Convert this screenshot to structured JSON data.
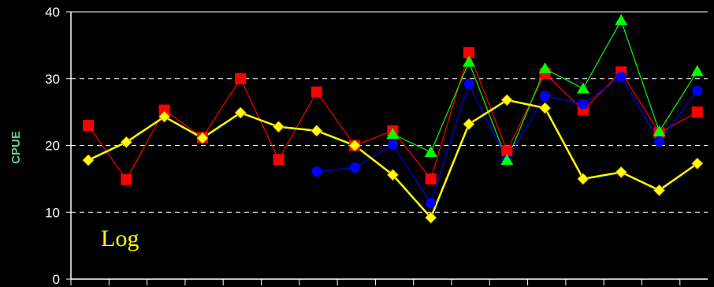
{
  "chart_data": {
    "type": "line",
    "title": "",
    "xlabel": "",
    "ylabel": "CPUE",
    "ylim": [
      0,
      40
    ],
    "yticks": [
      0,
      10,
      20,
      30,
      40
    ],
    "grid": "horizontal dashed",
    "x": [
      1,
      2,
      3,
      4,
      5,
      6,
      7,
      8,
      9,
      10,
      11,
      12,
      13,
      14,
      15,
      16,
      17,
      18
    ],
    "annotation": "Log",
    "series": [
      {
        "color": "#ff0000",
        "marker": "square",
        "values": [
          23.0,
          14.9,
          25.3,
          21.2,
          30.0,
          17.9,
          28.0,
          20.0,
          22.2,
          15.0,
          33.9,
          19.2,
          30.8,
          25.3,
          31.0,
          21.9,
          25.0,
          null
        ],
        "note": "index 17 unused"
      },
      {
        "color": "#0000ff",
        "marker": "circle",
        "values": [
          null,
          null,
          null,
          null,
          null,
          null,
          16.1,
          16.7,
          20.1,
          11.4,
          29.2,
          17.8,
          27.4,
          26.2,
          30.3,
          20.6,
          28.2,
          null
        ]
      },
      {
        "color": "#00ff00",
        "marker": "triangle",
        "values": [
          null,
          null,
          null,
          null,
          null,
          null,
          null,
          null,
          21.7,
          19.0,
          32.5,
          17.8,
          31.5,
          28.5,
          38.7,
          22.1,
          31.1,
          null
        ]
      },
      {
        "color": "#ffff00",
        "marker": "diamond",
        "values": [
          17.8,
          20.5,
          24.3,
          21.1,
          24.9,
          22.8,
          22.2,
          20.0,
          15.6,
          9.2,
          23.2,
          26.8,
          25.6,
          15.0,
          16.0,
          13.3,
          17.3,
          null
        ]
      }
    ]
  }
}
